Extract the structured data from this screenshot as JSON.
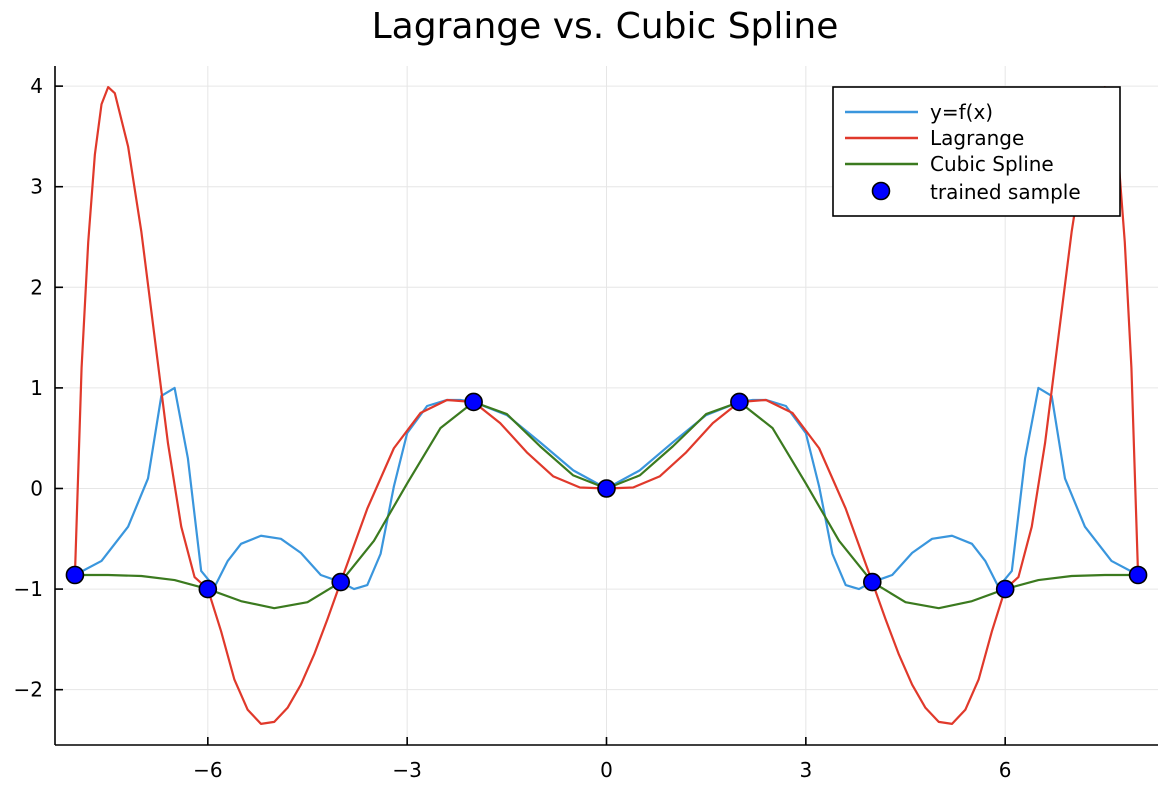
{
  "chart_data": {
    "type": "line",
    "title": "Lagrange vs. Cubic Spline",
    "xlim": [
      -8.3,
      8.3
    ],
    "ylim": [
      -2.55,
      4.2
    ],
    "xticks": [
      -6,
      -3,
      0,
      3,
      6
    ],
    "yticks": [
      -2,
      -1,
      0,
      1,
      2,
      3,
      4
    ],
    "xtick_labels": [
      "−6",
      "−3",
      "0",
      "3",
      "6"
    ],
    "ytick_labels": [
      "−2",
      "−1",
      "0",
      "1",
      "2",
      "3",
      "4"
    ],
    "grid": true,
    "legend_position": "top-right",
    "series": [
      {
        "name": "y=f(x)",
        "kind": "line",
        "color": "#3a96dd",
        "x": [
          -8,
          -7.6,
          -7.2,
          -6.9,
          -6.7,
          -6.5,
          -6.3,
          -6.1,
          -5.9,
          -5.7,
          -5.5,
          -5.2,
          -4.9,
          -4.6,
          -4.3,
          -4,
          -3.8,
          -3.6,
          -3.4,
          -3.2,
          -3.0,
          -2.7,
          -2.4,
          -2.2,
          -2,
          -1.5,
          -1,
          -0.5,
          0,
          0.5,
          1,
          1.5,
          2,
          2.2,
          2.4,
          2.7,
          3.0,
          3.2,
          3.4,
          3.6,
          3.8,
          4,
          4.3,
          4.6,
          4.9,
          5.2,
          5.5,
          5.7,
          5.9,
          6.1,
          6.3,
          6.5,
          6.7,
          6.9,
          7.2,
          7.6,
          8
        ],
        "y": [
          -0.86,
          -0.72,
          -0.38,
          0.1,
          0.92,
          1.0,
          0.3,
          -0.82,
          -0.98,
          -0.72,
          -0.55,
          -0.47,
          -0.5,
          -0.64,
          -0.86,
          -0.93,
          -1.0,
          -0.96,
          -0.65,
          0.02,
          0.55,
          0.82,
          0.88,
          0.88,
          0.86,
          0.73,
          0.46,
          0.18,
          0.0,
          0.18,
          0.46,
          0.73,
          0.86,
          0.88,
          0.88,
          0.82,
          0.55,
          0.02,
          -0.65,
          -0.96,
          -1.0,
          -0.93,
          -0.86,
          -0.64,
          -0.5,
          -0.47,
          -0.55,
          -0.72,
          -0.98,
          -0.82,
          0.3,
          1.0,
          0.92,
          0.1,
          -0.38,
          -0.72,
          -0.86
        ]
      },
      {
        "name": "Lagrange",
        "kind": "line",
        "color": "#e0392b",
        "x": [
          -8,
          -7.9,
          -7.8,
          -7.7,
          -7.6,
          -7.5,
          -7.4,
          -7.2,
          -7.0,
          -6.8,
          -6.6,
          -6.4,
          -6.2,
          -6.0,
          -5.8,
          -5.6,
          -5.4,
          -5.2,
          -5.0,
          -4.8,
          -4.6,
          -4.4,
          -4.2,
          -4.0,
          -3.6,
          -3.2,
          -2.8,
          -2.4,
          -2.0,
          -1.6,
          -1.2,
          -0.8,
          -0.4,
          0,
          0.4,
          0.8,
          1.2,
          1.6,
          2.0,
          2.4,
          2.8,
          3.2,
          3.6,
          4.0,
          4.2,
          4.4,
          4.6,
          4.8,
          5.0,
          5.2,
          5.4,
          5.6,
          5.8,
          6.0,
          6.2,
          6.4,
          6.6,
          6.8,
          7.0,
          7.2,
          7.4,
          7.5,
          7.6,
          7.7,
          7.8,
          7.9,
          8
        ],
        "y": [
          -0.86,
          1.2,
          2.45,
          3.32,
          3.82,
          3.99,
          3.93,
          3.4,
          2.55,
          1.5,
          0.45,
          -0.38,
          -0.88,
          -1.0,
          -1.42,
          -1.9,
          -2.2,
          -2.34,
          -2.32,
          -2.18,
          -1.95,
          -1.65,
          -1.3,
          -0.93,
          -0.2,
          0.4,
          0.75,
          0.88,
          0.86,
          0.65,
          0.36,
          0.12,
          0.01,
          0.0,
          0.01,
          0.12,
          0.36,
          0.65,
          0.86,
          0.88,
          0.75,
          0.4,
          -0.2,
          -0.93,
          -1.3,
          -1.65,
          -1.95,
          -2.18,
          -2.32,
          -2.34,
          -2.2,
          -1.9,
          -1.42,
          -1.0,
          -0.88,
          -0.38,
          0.45,
          1.5,
          2.55,
          3.4,
          3.93,
          3.99,
          3.82,
          3.32,
          2.45,
          1.2,
          -0.86
        ]
      },
      {
        "name": "Cubic Spline",
        "kind": "line",
        "color": "#3b7a1f",
        "x": [
          -8,
          -7.5,
          -7,
          -6.5,
          -6,
          -5.5,
          -5,
          -4.5,
          -4,
          -3.5,
          -3,
          -2.5,
          -2,
          -1.5,
          -1,
          -0.5,
          0,
          0.5,
          1,
          1.5,
          2,
          2.5,
          3,
          3.5,
          4,
          4.5,
          5,
          5.5,
          6,
          6.5,
          7,
          7.5,
          8
        ],
        "y": [
          -0.86,
          -0.86,
          -0.87,
          -0.91,
          -1.0,
          -1.12,
          -1.19,
          -1.13,
          -0.93,
          -0.52,
          0.05,
          0.6,
          0.86,
          0.74,
          0.42,
          0.13,
          0.0,
          0.13,
          0.42,
          0.74,
          0.86,
          0.6,
          0.05,
          -0.52,
          -0.93,
          -1.13,
          -1.19,
          -1.12,
          -1.0,
          -0.91,
          -0.87,
          -0.86,
          -0.86
        ]
      },
      {
        "name": "trained sample",
        "kind": "scatter",
        "color": "#0000ff",
        "x": [
          -8,
          -6,
          -4,
          -2,
          0,
          2,
          4,
          6,
          8
        ],
        "y": [
          -0.86,
          -1.0,
          -0.93,
          0.86,
          0.0,
          0.86,
          -0.93,
          -1.0,
          -0.86
        ]
      }
    ]
  }
}
